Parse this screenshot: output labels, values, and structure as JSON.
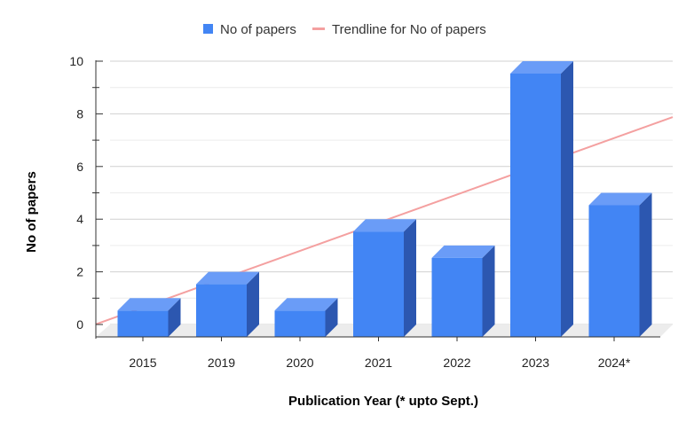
{
  "chart_data": {
    "type": "bar",
    "categories": [
      "2015",
      "2019",
      "2020",
      "2021",
      "2022",
      "2023",
      "2024*"
    ],
    "series": [
      {
        "name": "No of papers",
        "values": [
          1,
          2,
          1,
          4,
          3,
          10,
          5
        ]
      }
    ],
    "trendline": {
      "name": "Trendline for No of papers",
      "type": "linear"
    },
    "xlabel": "Publication Year (* upto Sept.)",
    "ylabel": "No of papers",
    "ylim": [
      0,
      10
    ],
    "yticks": [
      0,
      2,
      4,
      6,
      8,
      10
    ],
    "grid": true,
    "legend": "top-center",
    "colors": {
      "bar": "#4285f4",
      "bar_top": "#6a9cf7",
      "bar_side": "#2c57b0",
      "trendline": "#f4a0a0",
      "grid": "#dcdcdc",
      "floor": "#ececec"
    }
  }
}
